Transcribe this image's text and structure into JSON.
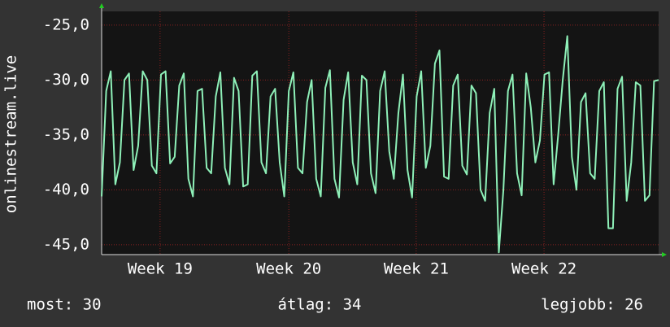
{
  "chart_data": {
    "type": "line",
    "ylabel": "onlinestream.live",
    "color": "#8ef0b8",
    "values": [
      -40.6,
      -31,
      -29.2,
      -39.5,
      -37.5,
      -30,
      -29.4,
      -38.2,
      -36,
      -29.2,
      -30,
      -37.8,
      -38.5,
      -29.5,
      -29.2,
      -37.6,
      -37,
      -30.5,
      -29.4,
      -39,
      -40.6,
      -31,
      -30.8,
      -38,
      -38.5,
      -31.5,
      -29.3,
      -38,
      -39.5,
      -29.8,
      -31,
      -39.7,
      -39.5,
      -29.6,
      -29.2,
      -37.5,
      -38.5,
      -31.5,
      -30.8,
      -37.5,
      -40.6,
      -31,
      -29.3,
      -38,
      -38.5,
      -32,
      -30,
      -39,
      -40.6,
      -30.7,
      -29.1,
      -39,
      -40.7,
      -31.8,
      -29.3,
      -37.5,
      -39.5,
      -29.6,
      -30,
      -38.5,
      -40.3,
      -31,
      -29.2,
      -36.5,
      -39,
      -33,
      -29.5,
      -38.2,
      -40.7,
      -31.5,
      -29.2,
      -38,
      -36,
      -28.5,
      -27.3,
      -38.8,
      -39,
      -30.5,
      -29.5,
      -37.8,
      -38.6,
      -30.5,
      -31.2,
      -40,
      -41,
      -33,
      -30.8,
      -45.7,
      -40,
      -31,
      -29.5,
      -38.5,
      -40.5,
      -29.4,
      -32.5,
      -37.5,
      -35.5,
      -29.5,
      -29.3,
      -39.5,
      -35,
      -30,
      -26,
      -37,
      -40,
      -32,
      -31.2,
      -38.5,
      -39,
      -31,
      -30.2,
      -43.5,
      -43.5,
      -30.8,
      -29.7,
      -41,
      -37.5,
      -30.2,
      -30.5,
      -41,
      -40.5,
      -30.1,
      -30
    ],
    "xlim": [
      0,
      122
    ],
    "xticks": [
      {
        "value": 12.8,
        "label": "Week 19"
      },
      {
        "value": 41.0,
        "label": "Week 20"
      },
      {
        "value": 68.9,
        "label": "Week 21"
      },
      {
        "value": 96.9,
        "label": "Week 22"
      }
    ],
    "ylim": [
      -45.9,
      -23.75
    ],
    "yticks": [
      {
        "value": -25,
        "label": "-25,0"
      },
      {
        "value": -30,
        "label": "-30,0"
      },
      {
        "value": -35,
        "label": "-35,0"
      },
      {
        "value": -40,
        "label": "-40,0"
      },
      {
        "value": -45,
        "label": "-45,0"
      }
    ],
    "grid": true,
    "footer": [
      "most: 30",
      "átlag: 34",
      "legjobb: 26"
    ]
  }
}
